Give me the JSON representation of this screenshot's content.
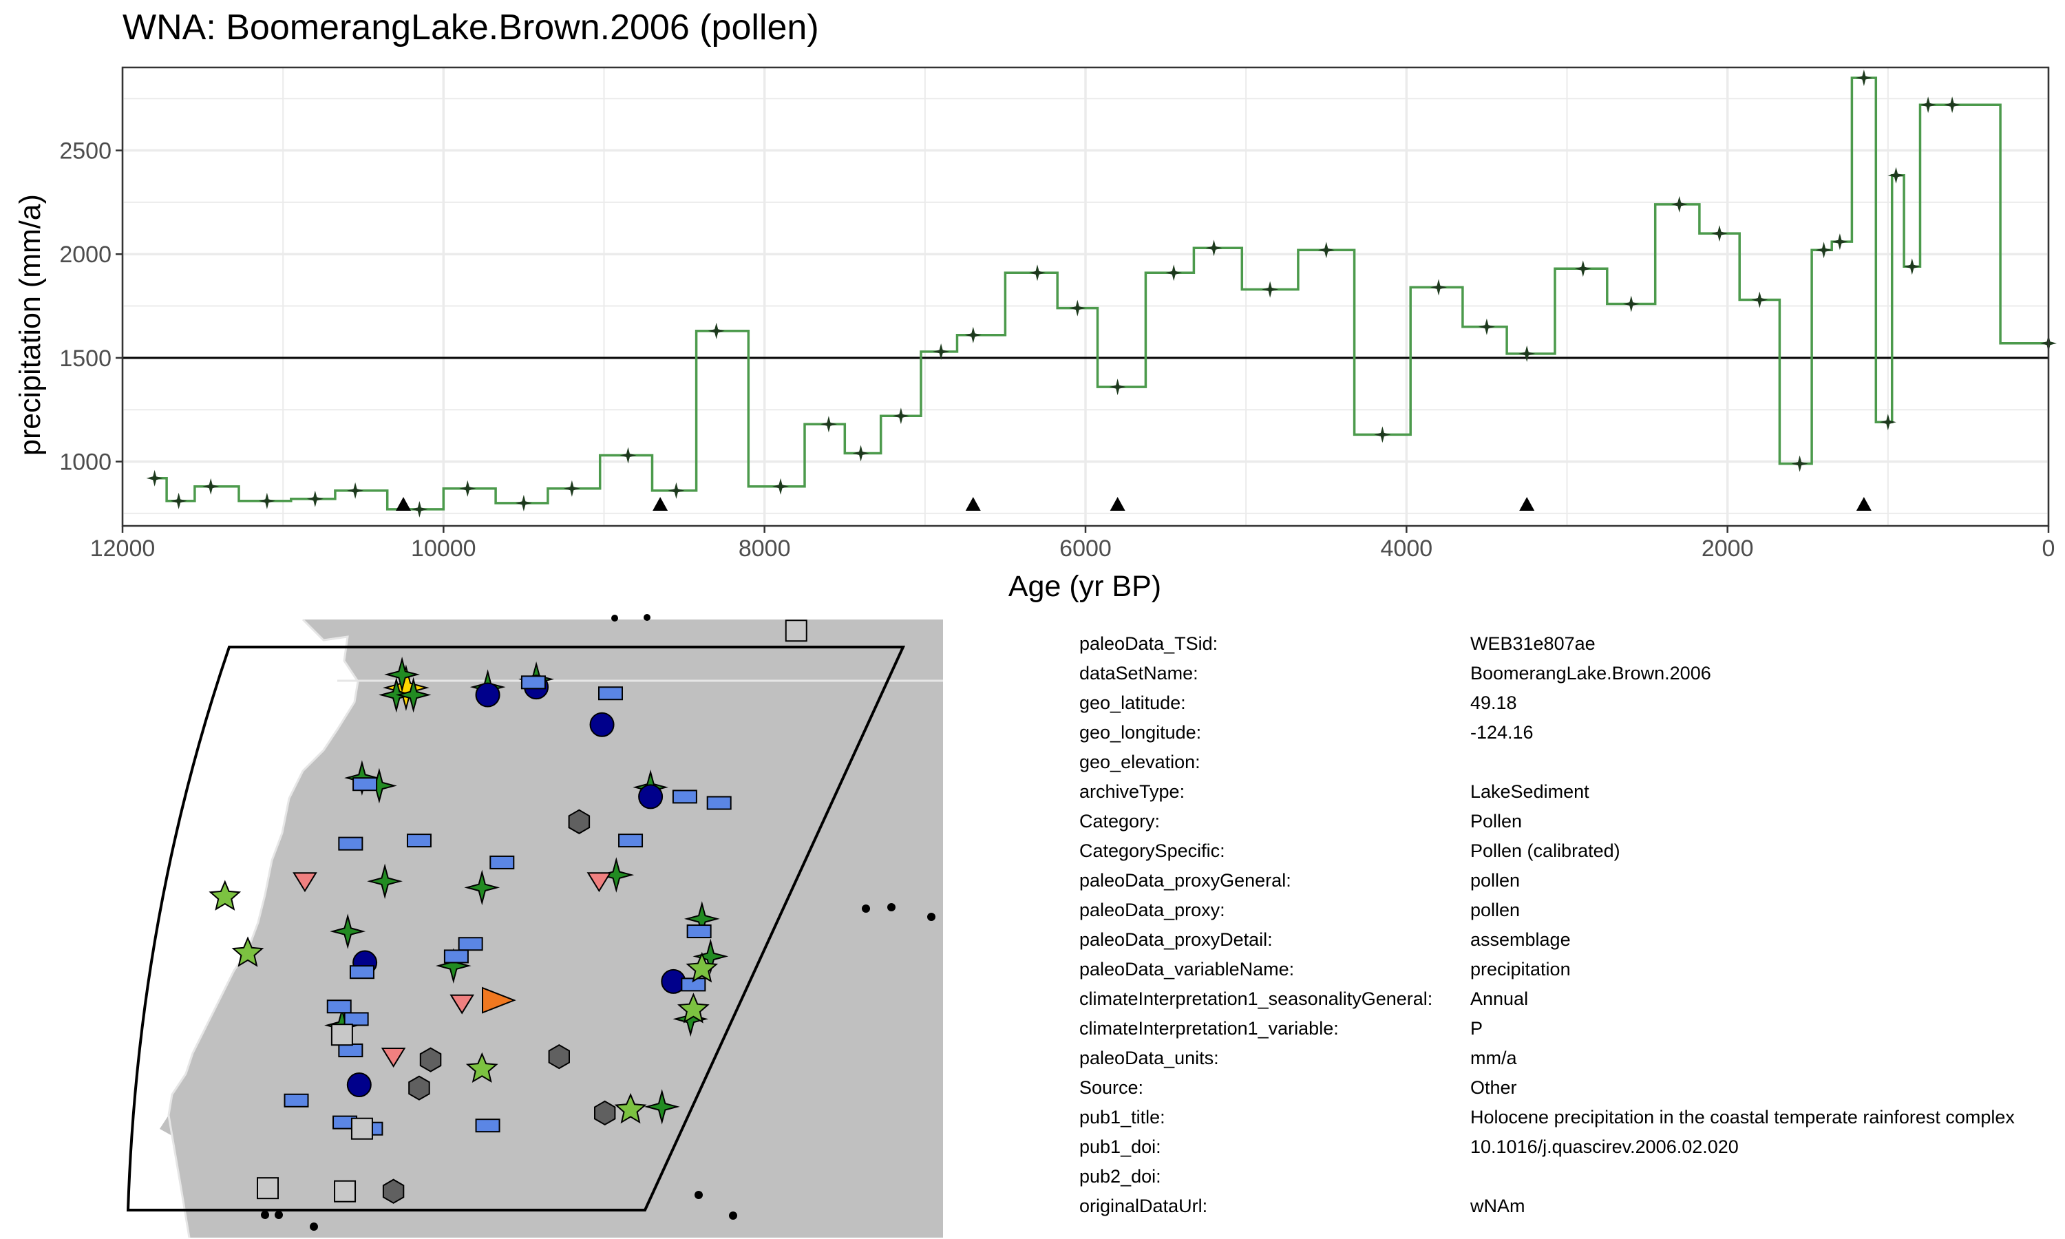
{
  "title": "WNA: BoomerangLake.Brown.2006 (pollen)",
  "colors": {
    "line": "#4c9a4c",
    "point": "#1d3a1d",
    "panel_border": "#333333",
    "grid": "#ebebeb",
    "land": "#c0c0c0"
  },
  "chart_data": {
    "type": "line",
    "step": true,
    "xlabel": "Age (yr BP)",
    "ylabel": "precipitation (mm/a)",
    "xlim": [
      12000,
      0
    ],
    "ylim": [
      690,
      2900
    ],
    "x_reversed": true,
    "xticks": [
      12000,
      10000,
      8000,
      6000,
      4000,
      2000,
      0
    ],
    "yticks": [
      1000,
      1500,
      2000,
      2500
    ],
    "reference_line": 1500,
    "series": [
      {
        "x": [
          11800,
          11650,
          11450,
          11100,
          10800,
          10550,
          10150,
          9850,
          9500,
          9200,
          8850,
          8550,
          8300,
          7900,
          7600,
          7400,
          7150,
          6900,
          6700,
          6300,
          6050,
          5800,
          5450,
          5200,
          4850,
          4500,
          4150,
          3800,
          3500,
          3250,
          2900,
          2600,
          2300,
          2050,
          1800,
          1550,
          1400,
          1300,
          1150,
          1000,
          950,
          850,
          750,
          600,
          0
        ],
        "y": [
          920,
          810,
          880,
          810,
          820,
          860,
          770,
          870,
          800,
          870,
          1030,
          860,
          1630,
          880,
          1180,
          1040,
          1220,
          1530,
          1610,
          1910,
          1740,
          1360,
          1910,
          2030,
          1830,
          2020,
          1130,
          1840,
          1650,
          1520,
          1930,
          1760,
          2240,
          2100,
          1780,
          990,
          2020,
          2060,
          2850,
          1190,
          2380,
          1940,
          2720,
          2720,
          1570
        ]
      }
    ],
    "age_markers_x": [
      10250,
      8650,
      6700,
      5800,
      3250,
      1150
    ]
  },
  "map": {
    "sites": [
      {
        "shape": "star4",
        "color": "#ffd700",
        "lon": -124.16,
        "lat": 49.18,
        "size": 30
      },
      {
        "shape": "star4",
        "color": "#228b22",
        "lon": -124.3,
        "lat": 49.6
      },
      {
        "shape": "star4",
        "color": "#228b22",
        "lon": -124.5,
        "lat": 48.95
      },
      {
        "shape": "star4",
        "color": "#228b22",
        "lon": -123.9,
        "lat": 48.95
      },
      {
        "shape": "star4",
        "color": "#228b22",
        "lon": -121.3,
        "lat": 49.2
      },
      {
        "shape": "star4",
        "color": "#228b22",
        "lon": -119.6,
        "lat": 49.45
      },
      {
        "shape": "star4",
        "color": "#228b22",
        "lon": -125.7,
        "lat": 46.3
      },
      {
        "shape": "star4",
        "color": "#228b22",
        "lon": -125.1,
        "lat": 46.05
      },
      {
        "shape": "star4",
        "color": "#228b22",
        "lon": -115.6,
        "lat": 46.0
      },
      {
        "shape": "star4",
        "color": "#228b22",
        "lon": -116.8,
        "lat": 43.2
      },
      {
        "shape": "star4",
        "color": "#228b22",
        "lon": -124.9,
        "lat": 43.0
      },
      {
        "shape": "star4",
        "color": "#228b22",
        "lon": -121.5,
        "lat": 42.8
      },
      {
        "shape": "star4",
        "color": "#228b22",
        "lon": -126.2,
        "lat": 41.4
      },
      {
        "shape": "star4",
        "color": "#228b22",
        "lon": -122.5,
        "lat": 40.3
      },
      {
        "shape": "star4",
        "color": "#228b22",
        "lon": -113.8,
        "lat": 41.8
      },
      {
        "shape": "star4",
        "color": "#228b22",
        "lon": -113.5,
        "lat": 40.6
      },
      {
        "shape": "star4",
        "color": "#228b22",
        "lon": -126.4,
        "lat": 38.4
      },
      {
        "shape": "star4",
        "color": "#228b22",
        "lon": -114.2,
        "lat": 38.6
      },
      {
        "shape": "star4",
        "color": "#228b22",
        "lon": -115.2,
        "lat": 35.8
      },
      {
        "shape": "circle",
        "color": "#00008b",
        "lon": -121.3,
        "lat": 48.95
      },
      {
        "shape": "circle",
        "color": "#00008b",
        "lon": -119.6,
        "lat": 49.2
      },
      {
        "shape": "circle",
        "color": "#00008b",
        "lon": -117.3,
        "lat": 48.0
      },
      {
        "shape": "circle",
        "color": "#00008b",
        "lon": -115.6,
        "lat": 45.7
      },
      {
        "shape": "circle",
        "color": "#00008b",
        "lon": -125.6,
        "lat": 40.4
      },
      {
        "shape": "circle",
        "color": "#00008b",
        "lon": -114.8,
        "lat": 39.8
      },
      {
        "shape": "circle",
        "color": "#00008b",
        "lon": -125.8,
        "lat": 36.5
      },
      {
        "shape": "rect",
        "color": "#5b86e5",
        "lon": -119.7,
        "lat": 49.35
      },
      {
        "shape": "rect",
        "color": "#5b86e5",
        "lon": -117.0,
        "lat": 49.0
      },
      {
        "shape": "rect",
        "color": "#5b86e5",
        "lon": -125.6,
        "lat": 46.1
      },
      {
        "shape": "rect",
        "color": "#5b86e5",
        "lon": -114.4,
        "lat": 45.7
      },
      {
        "shape": "rect",
        "color": "#5b86e5",
        "lon": -113.2,
        "lat": 45.5
      },
      {
        "shape": "rect",
        "color": "#5b86e5",
        "lon": -126.1,
        "lat": 44.2
      },
      {
        "shape": "rect",
        "color": "#5b86e5",
        "lon": -123.7,
        "lat": 44.3
      },
      {
        "shape": "rect",
        "color": "#5b86e5",
        "lon": -116.3,
        "lat": 44.3
      },
      {
        "shape": "rect",
        "color": "#5b86e5",
        "lon": -120.8,
        "lat": 43.6
      },
      {
        "shape": "rect",
        "color": "#5b86e5",
        "lon": -121.9,
        "lat": 41.0
      },
      {
        "shape": "rect",
        "color": "#5b86e5",
        "lon": -122.4,
        "lat": 40.6
      },
      {
        "shape": "rect",
        "color": "#5b86e5",
        "lon": -125.7,
        "lat": 40.1
      },
      {
        "shape": "rect",
        "color": "#5b86e5",
        "lon": -113.9,
        "lat": 41.4
      },
      {
        "shape": "rect",
        "color": "#5b86e5",
        "lon": -114.1,
        "lat": 39.7
      },
      {
        "shape": "rect",
        "color": "#5b86e5",
        "lon": -126.5,
        "lat": 39.0
      },
      {
        "shape": "rect",
        "color": "#5b86e5",
        "lon": -125.9,
        "lat": 38.6
      },
      {
        "shape": "rect",
        "color": "#5b86e5",
        "lon": -126.1,
        "lat": 37.6
      },
      {
        "shape": "rect",
        "color": "#5b86e5",
        "lon": -128.0,
        "lat": 36.0
      },
      {
        "shape": "rect",
        "color": "#5b86e5",
        "lon": -126.3,
        "lat": 35.3
      },
      {
        "shape": "rect",
        "color": "#5b86e5",
        "lon": -121.3,
        "lat": 35.2
      },
      {
        "shape": "rect",
        "color": "#5b86e5",
        "lon": -125.4,
        "lat": 35.1
      },
      {
        "shape": "triangle-down",
        "color": "#f08080",
        "lon": -127.7,
        "lat": 43.0
      },
      {
        "shape": "triangle-down",
        "color": "#f08080",
        "lon": -117.4,
        "lat": 43.0
      },
      {
        "shape": "triangle-down",
        "color": "#f08080",
        "lon": -122.2,
        "lat": 39.1
      },
      {
        "shape": "triangle-down",
        "color": "#f08080",
        "lon": -124.6,
        "lat": 37.4
      },
      {
        "shape": "hexagon",
        "color": "#606060",
        "lon": -118.1,
        "lat": 44.9
      },
      {
        "shape": "hexagon",
        "color": "#606060",
        "lon": -123.3,
        "lat": 37.3
      },
      {
        "shape": "hexagon",
        "color": "#606060",
        "lon": -118.8,
        "lat": 37.4
      },
      {
        "shape": "hexagon",
        "color": "#606060",
        "lon": -123.7,
        "lat": 36.4
      },
      {
        "shape": "hexagon",
        "color": "#606060",
        "lon": -117.2,
        "lat": 35.6
      },
      {
        "shape": "hexagon",
        "color": "#606060",
        "lon": -124.6,
        "lat": 33.1
      },
      {
        "shape": "star5",
        "color": "#7cc241",
        "lon": -130.5,
        "lat": 42.5
      },
      {
        "shape": "star5",
        "color": "#7cc241",
        "lon": -129.7,
        "lat": 40.7
      },
      {
        "shape": "star5",
        "color": "#7cc241",
        "lon": -113.8,
        "lat": 40.2
      },
      {
        "shape": "star5",
        "color": "#7cc241",
        "lon": -114.1,
        "lat": 38.9
      },
      {
        "shape": "star5",
        "color": "#7cc241",
        "lon": -121.5,
        "lat": 37.0
      },
      {
        "shape": "star5",
        "color": "#7cc241",
        "lon": -116.3,
        "lat": 35.7
      },
      {
        "shape": "square",
        "color": "#c8c8c8",
        "lon": -110.5,
        "lat": 51.0
      },
      {
        "shape": "square",
        "color": "#c8c8c8",
        "lon": -126.4,
        "lat": 38.1
      },
      {
        "shape": "square",
        "color": "#c8c8c8",
        "lon": -125.7,
        "lat": 35.1
      },
      {
        "shape": "square",
        "color": "#c8c8c8",
        "lon": -129.0,
        "lat": 33.2
      },
      {
        "shape": "square",
        "color": "#c8c8c8",
        "lon": -126.3,
        "lat": 33.1
      },
      {
        "shape": "triangle-right",
        "color": "#f07820",
        "lon": -121.0,
        "lat": 39.2
      }
    ]
  },
  "metadata": [
    {
      "key": "paleoData_TSid:",
      "value": "WEB31e807ae"
    },
    {
      "key": "dataSetName:",
      "value": "BoomerangLake.Brown.2006"
    },
    {
      "key": "geo_latitude:",
      "value": "49.18"
    },
    {
      "key": "geo_longitude:",
      "value": "-124.16"
    },
    {
      "key": "geo_elevation:",
      "value": ""
    },
    {
      "key": "archiveType:",
      "value": "LakeSediment"
    },
    {
      "key": "Category:",
      "value": "Pollen"
    },
    {
      "key": "CategorySpecific:",
      "value": "Pollen (calibrated)"
    },
    {
      "key": "paleoData_proxyGeneral:",
      "value": "pollen"
    },
    {
      "key": "paleoData_proxy:",
      "value": "pollen"
    },
    {
      "key": "paleoData_proxyDetail:",
      "value": "assemblage"
    },
    {
      "key": "paleoData_variableName:",
      "value": "precipitation"
    },
    {
      "key": "climateInterpretation1_seasonalityGeneral:",
      "value": "Annual"
    },
    {
      "key": "climateInterpretation1_variable:",
      "value": "P"
    },
    {
      "key": "paleoData_units:",
      "value": "mm/a"
    },
    {
      "key": "Source:",
      "value": "Other"
    },
    {
      "key": "pub1_title:",
      "value": "Holocene precipitation in the coastal temperate rainforest complex"
    },
    {
      "key": "pub1_doi:",
      "value": "10.1016/j.quascirev.2006.02.020"
    },
    {
      "key": "pub2_doi:",
      "value": ""
    },
    {
      "key": "originalDataUrl:",
      "value": "wNAm"
    }
  ]
}
